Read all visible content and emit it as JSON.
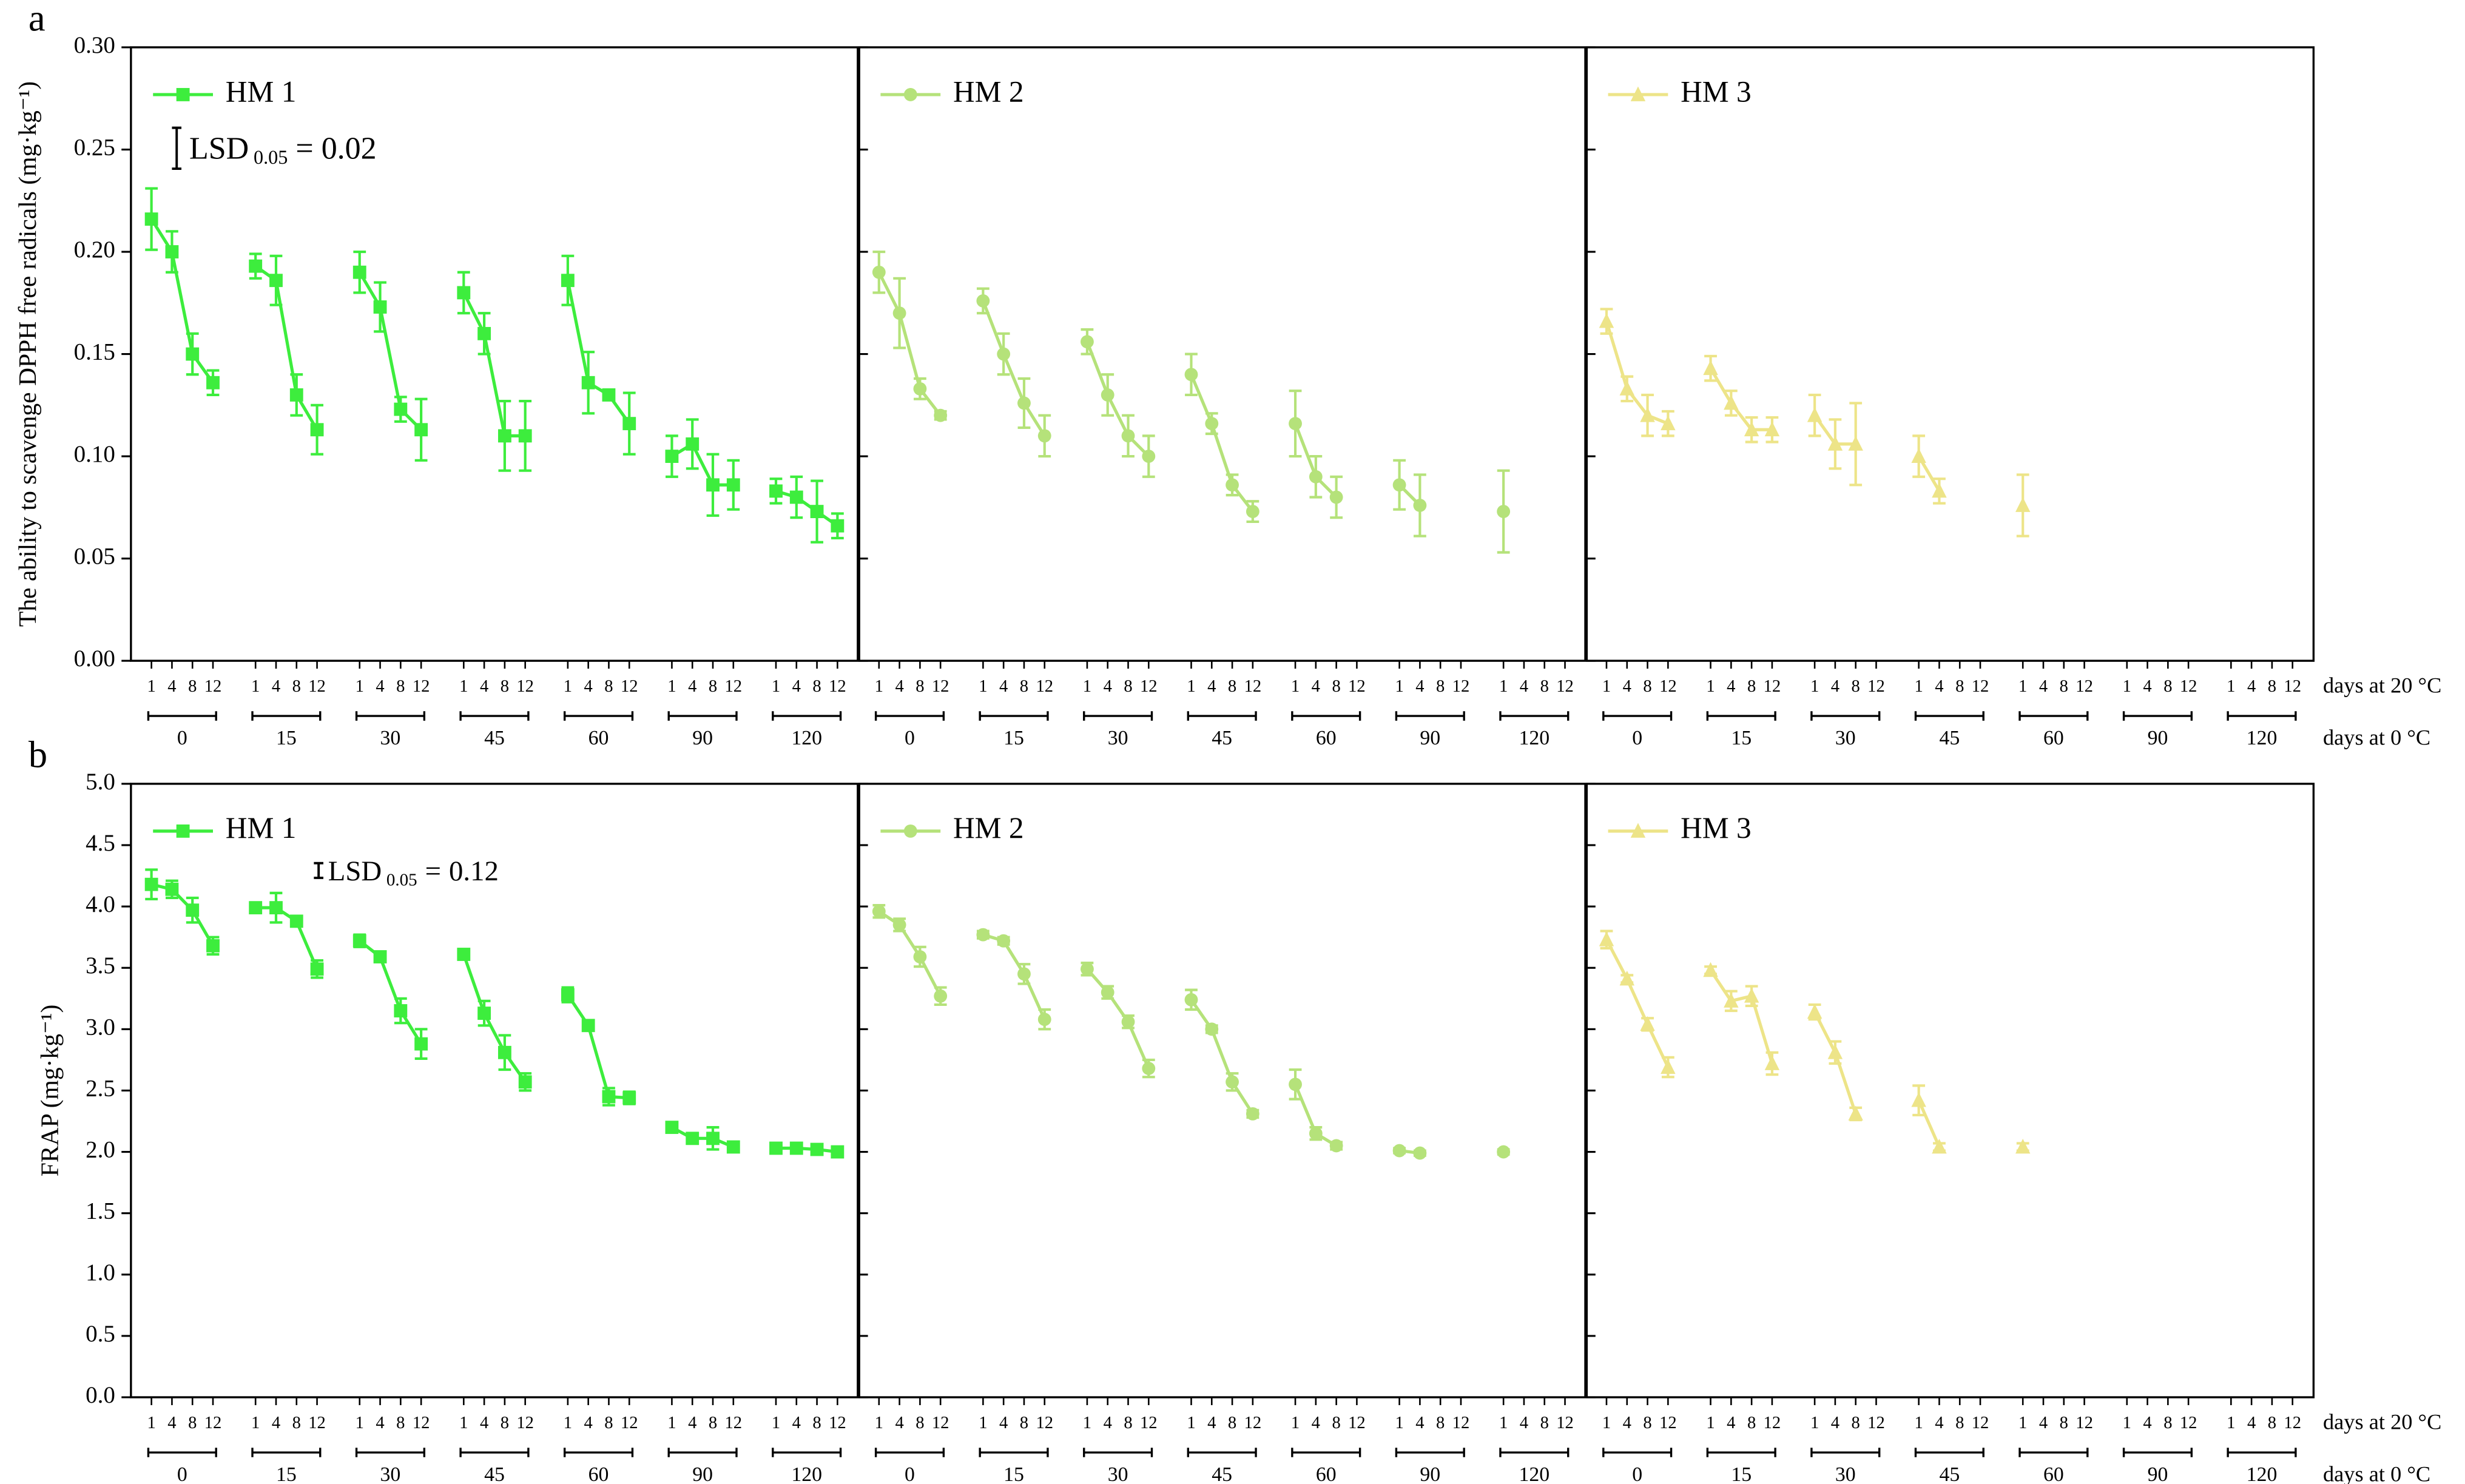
{
  "chart_data": [
    {
      "type": "line",
      "panel_label": "a",
      "ylabel": "The ability to scavenge DPPH free radicals (mg·kg⁻¹)",
      "xlabel": "days at 20 °C",
      "group_xlabel": "days at 0 °C",
      "categories": [
        "1",
        "4",
        "8",
        "12",
        "1",
        "4",
        "8",
        "12",
        "1",
        "4",
        "8",
        "12",
        "1",
        "4",
        "8",
        "12",
        "1",
        "4",
        "8",
        "12",
        "1",
        "4",
        "8",
        "12",
        "1",
        "4",
        "8",
        "12"
      ],
      "groups": [
        "0",
        "15",
        "30",
        "45",
        "60",
        "90",
        "120"
      ],
      "ylim": [
        0,
        0.3
      ],
      "yticks": [
        {
          "value": 0,
          "label": "0.00"
        },
        {
          "value": 0.05,
          "label": "0.05"
        },
        {
          "value": 0.1,
          "label": "0.10"
        },
        {
          "value": 0.15,
          "label": "0.15"
        },
        {
          "value": 0.2,
          "label": "0.20"
        },
        {
          "value": 0.25,
          "label": "0.25"
        },
        {
          "value": 0.3,
          "label": "0.30"
        }
      ],
      "lsd": {
        "label": "LSD",
        "subscript": "0.05",
        "equals": "=",
        "value": 0.02
      },
      "series": [
        {
          "name": "HM 1",
          "color": "#3ded3d",
          "marker": "square",
          "values": [
            0.216,
            0.2,
            0.15,
            0.136,
            0.193,
            0.186,
            0.13,
            0.113,
            0.19,
            0.173,
            0.123,
            0.113,
            0.18,
            0.16,
            0.11,
            0.11,
            0.186,
            0.136,
            0.13,
            0.116,
            0.1,
            0.106,
            0.086,
            0.086,
            0.083,
            0.08,
            0.073,
            0.066
          ],
          "errors": [
            0.015,
            0.01,
            0.01,
            0.006,
            0.006,
            0.012,
            0.01,
            0.012,
            0.01,
            0.012,
            0.006,
            0.015,
            0.01,
            0.01,
            0.017,
            0.017,
            0.012,
            0.015,
            0.002,
            0.015,
            0.01,
            0.012,
            0.015,
            0.012,
            0.006,
            0.01,
            0.015,
            0.006
          ]
        },
        {
          "name": "HM 2",
          "color": "#b5e27a",
          "marker": "circle",
          "values": [
            0.19,
            0.17,
            0.133,
            0.12,
            0.176,
            0.15,
            0.126,
            0.11,
            0.156,
            0.13,
            0.11,
            0.1,
            0.14,
            0.116,
            0.086,
            0.073,
            0.116,
            0.09,
            0.08,
            null,
            0.086,
            0.076,
            null,
            null,
            0.073,
            null,
            null,
            null
          ],
          "errors": [
            0.01,
            0.017,
            0.005,
            0.002,
            0.006,
            0.01,
            0.012,
            0.01,
            0.006,
            0.01,
            0.01,
            0.01,
            0.01,
            0.005,
            0.005,
            0.005,
            0.016,
            0.01,
            0.01,
            null,
            0.012,
            0.015,
            null,
            null,
            0.02,
            null,
            null,
            null
          ]
        },
        {
          "name": "HM 3",
          "color": "#ede488",
          "marker": "triangle",
          "values": [
            0.166,
            0.133,
            0.12,
            0.116,
            0.143,
            0.126,
            0.113,
            0.113,
            0.12,
            0.106,
            0.106,
            null,
            0.1,
            0.083,
            null,
            null,
            0.076,
            null,
            null,
            null,
            null,
            null,
            null,
            null,
            null,
            null,
            null,
            null
          ],
          "errors": [
            0.006,
            0.006,
            0.01,
            0.006,
            0.006,
            0.006,
            0.006,
            0.006,
            0.01,
            0.012,
            0.02,
            null,
            0.01,
            0.006,
            null,
            null,
            0.015,
            null,
            null,
            null,
            null,
            null,
            null,
            null,
            null,
            null,
            null,
            null
          ]
        }
      ]
    },
    {
      "type": "line",
      "panel_label": "b",
      "ylabel": "FRAP (mg·kg⁻¹)",
      "xlabel": "days at 20 °C",
      "group_xlabel": "days at 0 °C",
      "categories": [
        "1",
        "4",
        "8",
        "12",
        "1",
        "4",
        "8",
        "12",
        "1",
        "4",
        "8",
        "12",
        "1",
        "4",
        "8",
        "12",
        "1",
        "4",
        "8",
        "12",
        "1",
        "4",
        "8",
        "12",
        "1",
        "4",
        "8",
        "12"
      ],
      "groups": [
        "0",
        "15",
        "30",
        "45",
        "60",
        "90",
        "120"
      ],
      "ylim": [
        0,
        5
      ],
      "yticks": [
        {
          "value": 0,
          "label": "0.0"
        },
        {
          "value": 0.5,
          "label": "0.5"
        },
        {
          "value": 1,
          "label": "1.0"
        },
        {
          "value": 1.5,
          "label": "1.5"
        },
        {
          "value": 2,
          "label": "2.0"
        },
        {
          "value": 2.5,
          "label": "2.5"
        },
        {
          "value": 3,
          "label": "3.0"
        },
        {
          "value": 3.5,
          "label": "3.5"
        },
        {
          "value": 4,
          "label": "4.0"
        },
        {
          "value": 4.5,
          "label": "4.5"
        },
        {
          "value": 5,
          "label": "5.0"
        }
      ],
      "lsd": {
        "label": "LSD",
        "subscript": "0.05",
        "equals": "=",
        "value": 0.12
      },
      "series": [
        {
          "name": "HM 1",
          "color": "#3ded3d",
          "marker": "square",
          "values": [
            4.18,
            4.14,
            3.97,
            3.68,
            3.99,
            3.99,
            3.88,
            3.49,
            3.72,
            3.59,
            3.15,
            2.88,
            3.61,
            3.13,
            2.81,
            2.57,
            3.28,
            3.03,
            2.45,
            2.44,
            2.2,
            2.11,
            2.11,
            2.04,
            2.03,
            2.03,
            2.02,
            2.0
          ],
          "errors": [
            0.12,
            0.07,
            0.1,
            0.07,
            0.03,
            0.12,
            0.03,
            0.07,
            0.05,
            0.03,
            0.1,
            0.12,
            0.03,
            0.1,
            0.14,
            0.07,
            0.06,
            0.03,
            0.07,
            0.05,
            0.03,
            0.03,
            0.09,
            0.03,
            0.03,
            0.02,
            0.02,
            0.02
          ]
        },
        {
          "name": "HM 2",
          "color": "#b5e27a",
          "marker": "circle",
          "values": [
            3.96,
            3.85,
            3.59,
            3.27,
            3.77,
            3.72,
            3.45,
            3.08,
            3.49,
            3.3,
            3.06,
            2.68,
            3.24,
            3.0,
            2.57,
            2.31,
            2.55,
            2.15,
            2.05,
            null,
            2.01,
            1.99,
            null,
            null,
            2.0,
            null,
            null,
            null
          ],
          "errors": [
            0.05,
            0.05,
            0.08,
            0.07,
            0.03,
            0.03,
            0.08,
            0.08,
            0.05,
            0.05,
            0.05,
            0.07,
            0.08,
            0.03,
            0.07,
            0.03,
            0.12,
            0.05,
            0.03,
            null,
            0.02,
            0.02,
            null,
            null,
            0.02,
            null,
            null,
            null
          ]
        },
        {
          "name": "HM 3",
          "color": "#ede488",
          "marker": "triangle",
          "values": [
            3.73,
            3.41,
            3.04,
            2.69,
            3.48,
            3.23,
            3.27,
            2.72,
            3.14,
            2.81,
            2.31,
            null,
            2.42,
            2.04,
            null,
            null,
            2.04,
            null,
            null,
            null,
            null,
            null,
            null,
            null,
            null,
            null,
            null,
            null
          ],
          "errors": [
            0.07,
            0.03,
            0.05,
            0.08,
            0.03,
            0.08,
            0.08,
            0.09,
            0.06,
            0.09,
            0.05,
            null,
            0.12,
            0.03,
            null,
            null,
            0.03,
            null,
            null,
            null,
            null,
            null,
            null,
            null,
            null,
            null,
            null,
            null
          ]
        }
      ]
    }
  ]
}
